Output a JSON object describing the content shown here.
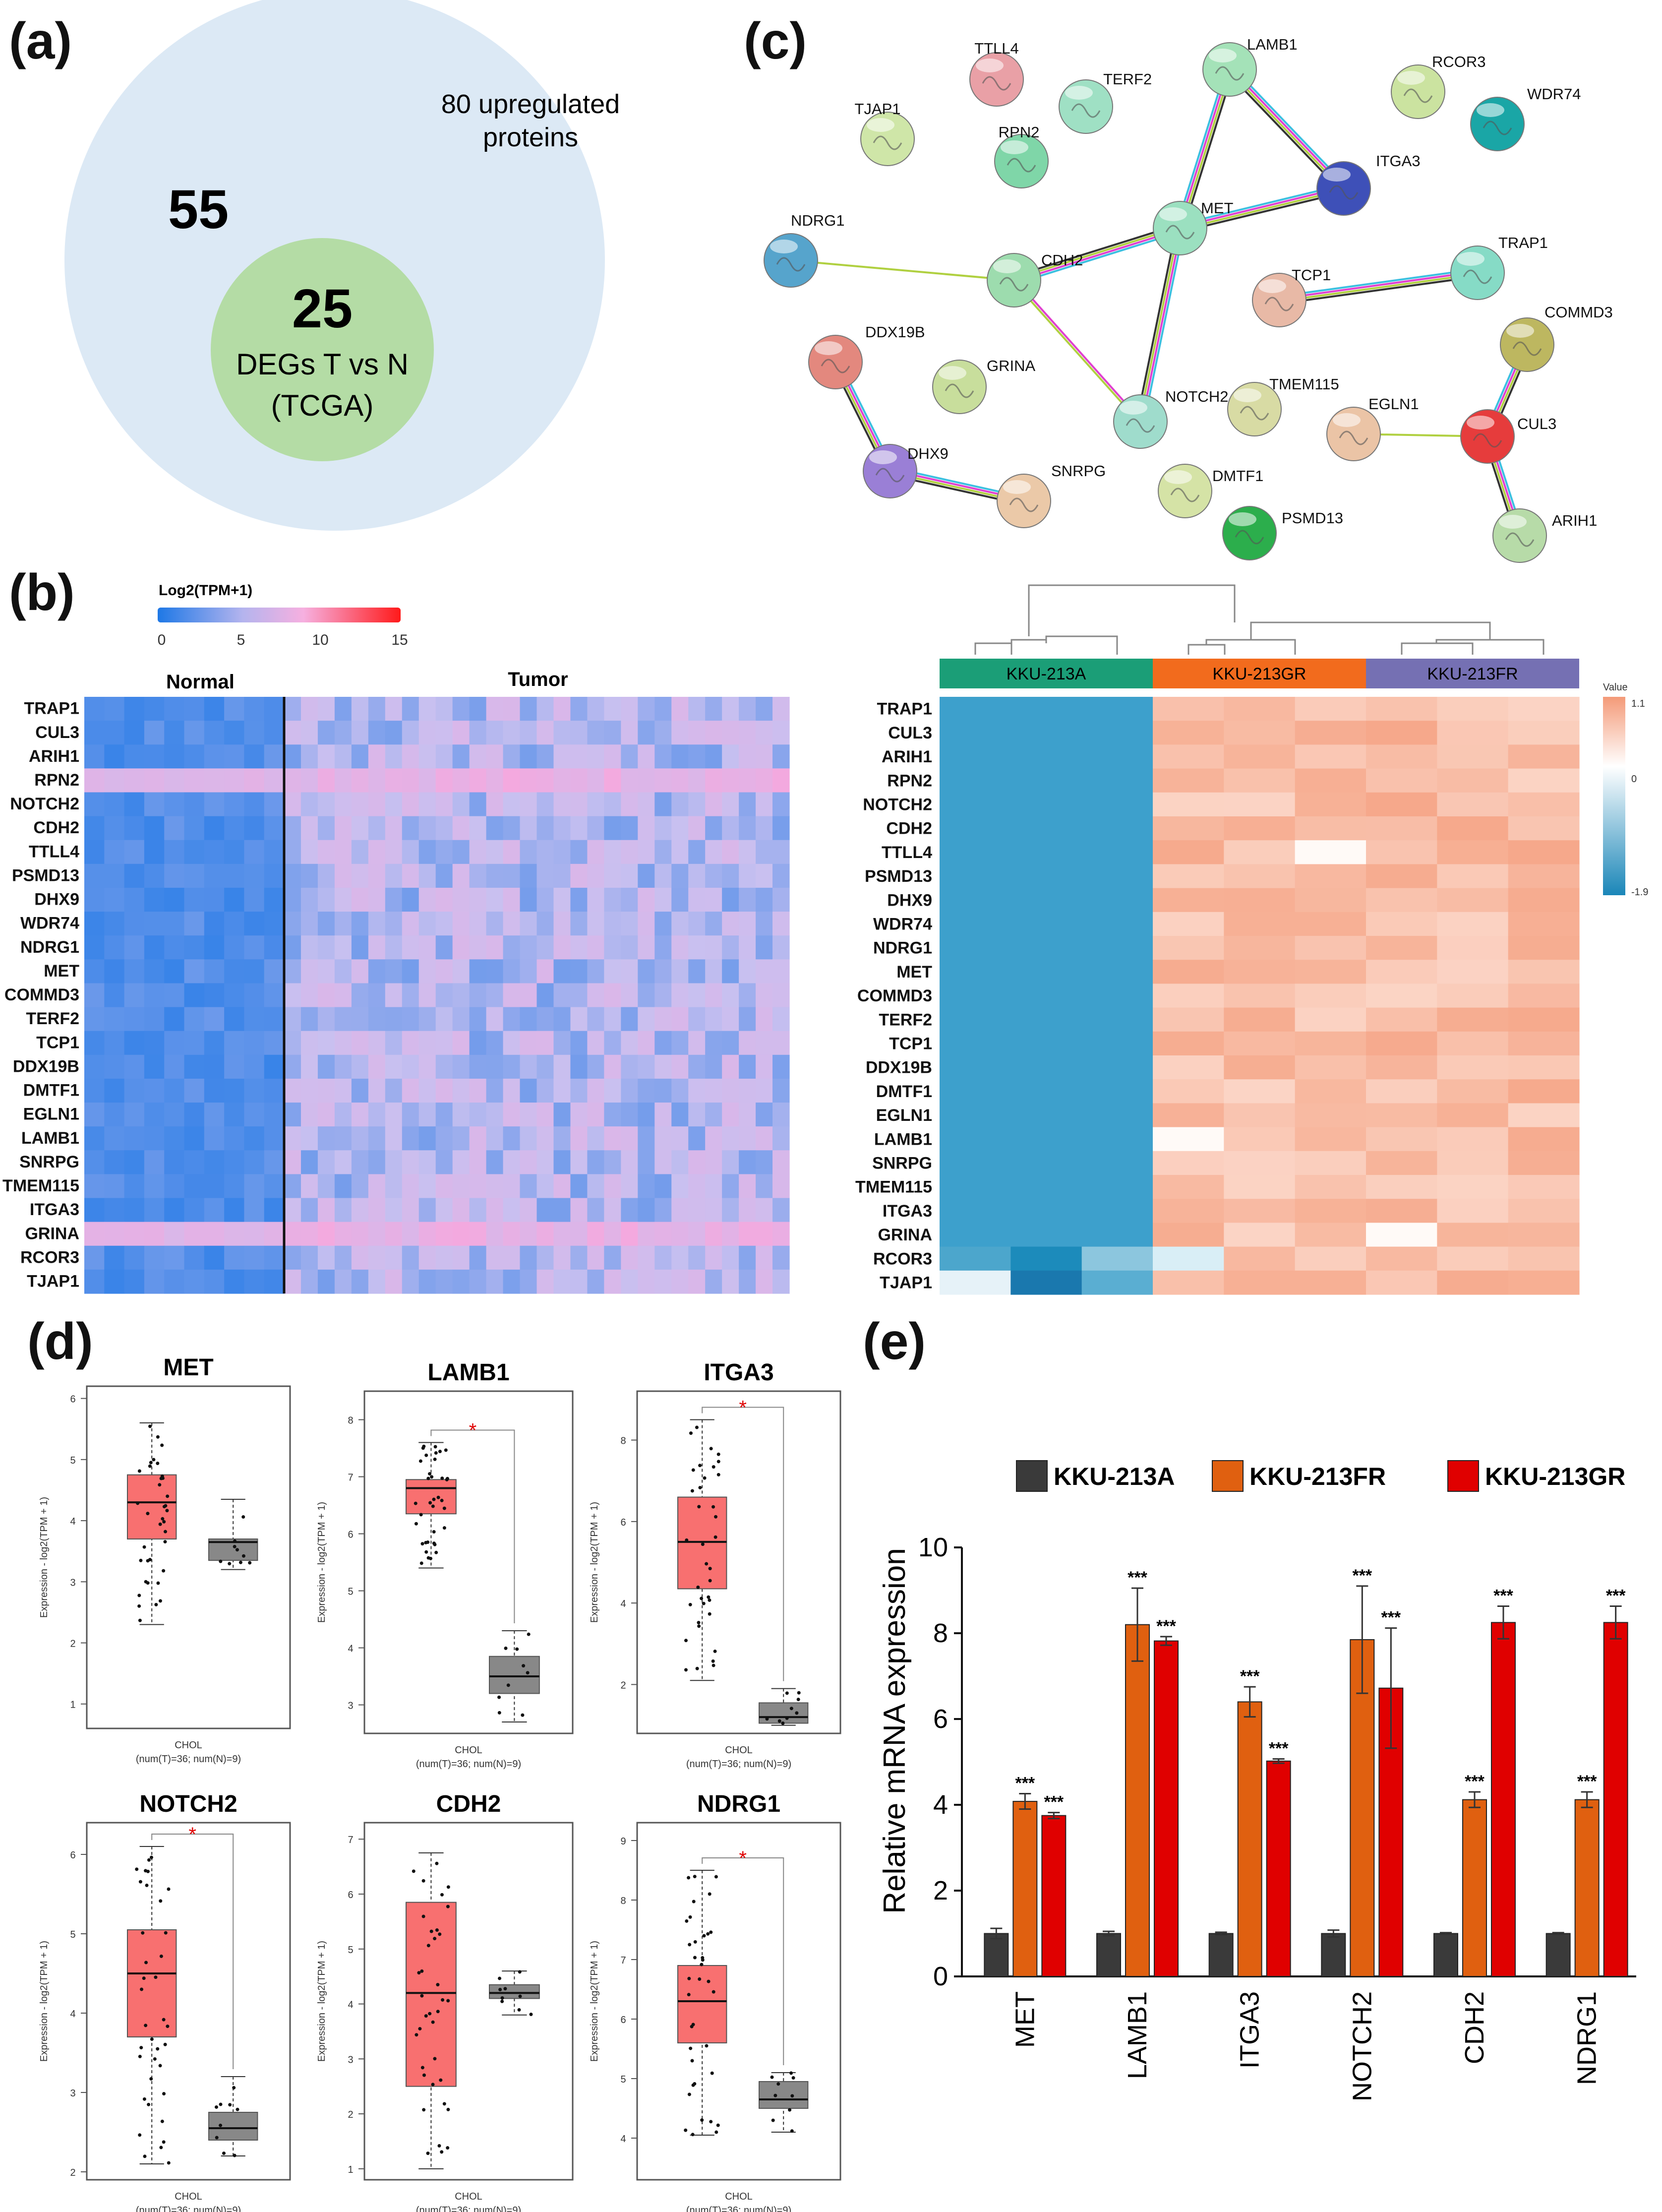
{
  "panel_labels": {
    "a": "(a)",
    "b": "(b)",
    "c": "(c)",
    "d": "(d)",
    "e": "(e)"
  },
  "colors": {
    "venn_outer": "#dce9f5",
    "venn_inner": "#b4dca5",
    "bar_A": "#3a3a3a",
    "bar_FR": "#e06010",
    "bar_GR": "#e00000",
    "box_T": "#f87070",
    "box_N": "#888888",
    "dendro_A": "#1b9e77",
    "dendro_GR": "#f26b1d",
    "dendro_FR": "#7570b3"
  },
  "venn": {
    "outer_label_1": "80 upregulated",
    "outer_label_2": "proteins",
    "outer_count": "55",
    "inner_count": "25",
    "inner_label_1": "DEGs T vs N",
    "inner_label_2": "(TCGA)"
  },
  "genes": [
    "TRAP1",
    "CUL3",
    "ARIH1",
    "RPN2",
    "NOTCH2",
    "CDH2",
    "TTLL4",
    "PSMD13",
    "DHX9",
    "WDR74",
    "NDRG1",
    "MET",
    "COMMD3",
    "TERF2",
    "TCP1",
    "DDX19B",
    "DMTF1",
    "EGLN1",
    "LAMB1",
    "SNRPG",
    "TMEM115",
    "ITGA3",
    "GRINA",
    "RCOR3",
    "TJAP1"
  ],
  "heat_tcga": {
    "legend_title": "Log2(TPM+1)",
    "legend_ticks": [
      "0",
      "5",
      "10",
      "15"
    ],
    "group_normal": "Normal",
    "group_tumor": "Tumor"
  },
  "heat_cells": {
    "groups": [
      "KKU-213A",
      "KKU-213GR",
      "KKU-213FR"
    ],
    "legend_title": "Value",
    "legend_ticks": [
      "1.1",
      "0",
      "-1.9"
    ]
  },
  "network": {
    "nodes": [
      {
        "name": "TTLL4",
        "color": "#e9a0a6"
      },
      {
        "name": "TERF2",
        "color": "#9fe0c4"
      },
      {
        "name": "LAMB1",
        "color": "#a4e2b8"
      },
      {
        "name": "RCOR3",
        "color": "#cbe3a0"
      },
      {
        "name": "WDR74",
        "color": "#1aa6a6"
      },
      {
        "name": "TJAP1",
        "color": "#cfe6a8"
      },
      {
        "name": "RPN2",
        "color": "#7fd6a8"
      },
      {
        "name": "ITGA3",
        "color": "#3e50b8"
      },
      {
        "name": "MET",
        "color": "#9be0c0"
      },
      {
        "name": "NDRG1",
        "color": "#56a4cc"
      },
      {
        "name": "CDH2",
        "color": "#9ddcae"
      },
      {
        "name": "TRAP1",
        "color": "#86dbc6"
      },
      {
        "name": "TCP1",
        "color": "#e8b9a6"
      },
      {
        "name": "COMMD3",
        "color": "#bdb760"
      },
      {
        "name": "DDX19B",
        "color": "#e3887e"
      },
      {
        "name": "GRINA",
        "color": "#c8de9c"
      },
      {
        "name": "NOTCH2",
        "color": "#9fdccc"
      },
      {
        "name": "TMEM115",
        "color": "#d8dba4"
      },
      {
        "name": "EGLN1",
        "color": "#ebc4a6"
      },
      {
        "name": "CUL3",
        "color": "#e63c3c"
      },
      {
        "name": "DHX9",
        "color": "#9a7fd6"
      },
      {
        "name": "SNRPG",
        "color": "#ebc9a8"
      },
      {
        "name": "DMTF1",
        "color": "#d5e3a6"
      },
      {
        "name": "PSMD13",
        "color": "#2cae4c"
      },
      {
        "name": "ARIH1",
        "color": "#b7dba8"
      }
    ],
    "edges": [
      [
        "MET",
        "LAMB1"
      ],
      [
        "MET",
        "ITGA3"
      ],
      [
        "LAMB1",
        "ITGA3"
      ],
      [
        "MET",
        "CDH2"
      ],
      [
        "MET",
        "NOTCH2"
      ],
      [
        "CDH2",
        "NOTCH2"
      ],
      [
        "CDH2",
        "NDRG1"
      ],
      [
        "TCP1",
        "TRAP1"
      ],
      [
        "CUL3",
        "COMMD3"
      ],
      [
        "CUL3",
        "ARIH1"
      ],
      [
        "CUL3",
        "EGLN1"
      ],
      [
        "DDX19B",
        "DHX9"
      ],
      [
        "DHX9",
        "SNRPG"
      ]
    ]
  },
  "boxplots": {
    "ylabel": "Expression - log2(TPM + 1)",
    "xlabel_1": "CHOL",
    "xlabel_2": "(num(T)=36; num(N)=9)",
    "sig_mark": "*",
    "plots": [
      {
        "gene": "MET",
        "sig": false,
        "ylim": [
          0.6,
          6.2
        ],
        "yticks": [
          "1",
          "2",
          "3",
          "4",
          "5",
          "6"
        ],
        "tumor": {
          "min": 2.3,
          "q1": 3.7,
          "median": 4.3,
          "q3": 4.75,
          "max": 5.6
        },
        "normal": {
          "min": 3.2,
          "q1": 3.35,
          "median": 3.65,
          "q3": 3.7,
          "max": 4.35
        }
      },
      {
        "gene": "LAMB1",
        "sig": true,
        "ylim": [
          2.5,
          8.5
        ],
        "yticks": [
          "3",
          "4",
          "5",
          "6",
          "7",
          "8"
        ],
        "tumor": {
          "min": 5.4,
          "q1": 6.35,
          "median": 6.8,
          "q3": 6.95,
          "max": 7.6
        },
        "normal": {
          "min": 2.7,
          "q1": 3.2,
          "median": 3.5,
          "q3": 3.85,
          "max": 4.3
        }
      },
      {
        "gene": "ITGA3",
        "sig": true,
        "ylim": [
          0.8,
          9.2
        ],
        "yticks": [
          "2",
          "4",
          "6",
          "8"
        ],
        "tumor": {
          "min": 2.1,
          "q1": 4.35,
          "median": 5.5,
          "q3": 6.6,
          "max": 8.5
        },
        "normal": {
          "min": 1.0,
          "q1": 1.05,
          "median": 1.2,
          "q3": 1.55,
          "max": 1.9
        }
      },
      {
        "gene": "NOTCH2",
        "sig": true,
        "ylim": [
          1.9,
          6.4
        ],
        "yticks": [
          "2",
          "3",
          "4",
          "5",
          "6"
        ],
        "tumor": {
          "min": 2.1,
          "q1": 3.7,
          "median": 4.5,
          "q3": 5.05,
          "max": 6.1
        },
        "normal": {
          "min": 2.2,
          "q1": 2.4,
          "median": 2.55,
          "q3": 2.75,
          "max": 3.2
        }
      },
      {
        "gene": "CDH2",
        "sig": false,
        "ylim": [
          0.8,
          7.3
        ],
        "yticks": [
          "1",
          "2",
          "3",
          "4",
          "5",
          "6",
          "7"
        ],
        "tumor": {
          "min": 1.0,
          "q1": 2.5,
          "median": 4.2,
          "q3": 5.85,
          "max": 6.75
        },
        "normal": {
          "min": 3.8,
          "q1": 4.1,
          "median": 4.2,
          "q3": 4.35,
          "max": 4.6
        }
      },
      {
        "gene": "NDRG1",
        "sig": true,
        "ylim": [
          3.3,
          9.3
        ],
        "yticks": [
          "4",
          "5",
          "6",
          "7",
          "8",
          "9"
        ],
        "tumor": {
          "min": 4.05,
          "q1": 5.6,
          "median": 6.3,
          "q3": 6.9,
          "max": 8.5
        },
        "normal": {
          "min": 4.1,
          "q1": 4.5,
          "median": 4.65,
          "q3": 4.95,
          "max": 5.1
        }
      }
    ]
  },
  "chart_data": {
    "type": "bar",
    "title": "",
    "xlabel": "",
    "ylabel": "Relative mRNA expression",
    "ylim": [
      0,
      10
    ],
    "yticks": [
      "0",
      "2",
      "4",
      "6",
      "8",
      "10"
    ],
    "categories": [
      "MET",
      "LAMB1",
      "ITGA3",
      "NOTCH2",
      "CDH2",
      "NDRG1"
    ],
    "legend_position": "top",
    "significance": "***",
    "series": [
      {
        "name": "KKU-213A",
        "color": "#3a3a3a",
        "values": [
          1.0,
          1.0,
          1.0,
          1.0,
          1.0,
          1.0
        ],
        "errors": [
          0.12,
          0.05,
          0.03,
          0.08,
          0.02,
          0.02
        ]
      },
      {
        "name": "KKU-213FR",
        "color": "#e06010",
        "values": [
          4.08,
          8.2,
          6.4,
          7.85,
          4.12,
          4.12
        ],
        "errors": [
          0.18,
          0.85,
          0.35,
          1.25,
          0.18,
          0.18
        ]
      },
      {
        "name": "KKU-213GR",
        "color": "#e00000",
        "values": [
          3.75,
          7.82,
          5.02,
          6.72,
          8.25,
          8.25
        ],
        "errors": [
          0.07,
          0.1,
          0.05,
          1.4,
          0.38,
          0.38
        ]
      }
    ]
  }
}
